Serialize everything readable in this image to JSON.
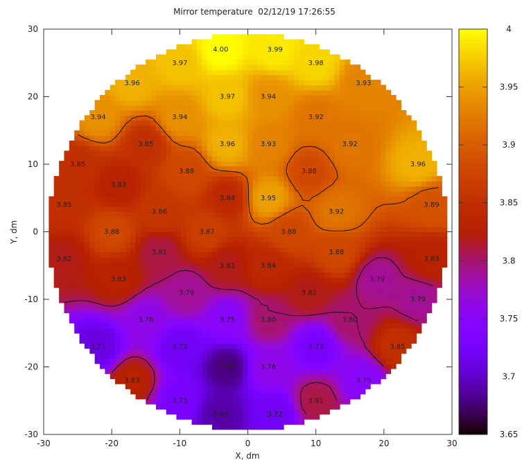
{
  "chart_data": {
    "type": "heatmap",
    "title": "Mirror temperature  02/12/19 17:26:55",
    "xlabel": "X, dm",
    "ylabel": "Y, dm",
    "xlim": [
      -30,
      30
    ],
    "ylim": [
      -30,
      30
    ],
    "xticks": [
      -30,
      -20,
      -10,
      0,
      10,
      20,
      30
    ],
    "yticks": [
      -30,
      -20,
      -10,
      0,
      10,
      20,
      30
    ],
    "colorbar": {
      "range": [
        3.65,
        4.0
      ],
      "ticks": [
        "3.65",
        "3.7",
        "3.75",
        "3.8",
        "3.85",
        "3.9",
        "3.95",
        "4"
      ],
      "colormap": "black-purple-red-orange-yellow"
    },
    "contour_levels": [
      3.8,
      3.9
    ],
    "grid": false,
    "points": [
      {
        "x": -4,
        "y": 27,
        "v": "4.00"
      },
      {
        "x": 4,
        "y": 27,
        "v": "3.99"
      },
      {
        "x": -10,
        "y": 25,
        "v": "3.97"
      },
      {
        "x": 10,
        "y": 25,
        "v": "3.98"
      },
      {
        "x": -17,
        "y": 22,
        "v": "3.96"
      },
      {
        "x": 17,
        "y": 22,
        "v": "3.93"
      },
      {
        "x": -3,
        "y": 20,
        "v": "3.97"
      },
      {
        "x": 3,
        "y": 20,
        "v": "3.94"
      },
      {
        "x": -22,
        "y": 17,
        "v": "3.94"
      },
      {
        "x": -10,
        "y": 17,
        "v": "3.94"
      },
      {
        "x": 10,
        "y": 17,
        "v": "3.92"
      },
      {
        "x": -15,
        "y": 13,
        "v": "3.85"
      },
      {
        "x": -3,
        "y": 13,
        "v": "3.96"
      },
      {
        "x": 3,
        "y": 13,
        "v": "3.93"
      },
      {
        "x": 15,
        "y": 13,
        "v": "3.92"
      },
      {
        "x": -25,
        "y": 10,
        "v": "3.85"
      },
      {
        "x": -9,
        "y": 9,
        "v": "3.88"
      },
      {
        "x": 9,
        "y": 9,
        "v": "3.88"
      },
      {
        "x": 25,
        "y": 10,
        "v": "3.96"
      },
      {
        "x": -19,
        "y": 7,
        "v": "3.83"
      },
      {
        "x": -3,
        "y": 5,
        "v": "3.84"
      },
      {
        "x": 3,
        "y": 5,
        "v": "3.95"
      },
      {
        "x": -27,
        "y": 4,
        "v": "3.85"
      },
      {
        "x": -13,
        "y": 3,
        "v": "3.86"
      },
      {
        "x": 13,
        "y": 3,
        "v": "3.92"
      },
      {
        "x": 27,
        "y": 4,
        "v": "3.89"
      },
      {
        "x": -20,
        "y": 0,
        "v": "3.88"
      },
      {
        "x": -6,
        "y": 0,
        "v": "3.87"
      },
      {
        "x": 6,
        "y": 0,
        "v": "3.88"
      },
      {
        "x": -27,
        "y": -4,
        "v": "3.82"
      },
      {
        "x": -13,
        "y": -3,
        "v": "3.81"
      },
      {
        "x": 13,
        "y": -3,
        "v": "3.88"
      },
      {
        "x": 27,
        "y": -4,
        "v": "3.83"
      },
      {
        "x": -3,
        "y": -5,
        "v": "3.82"
      },
      {
        "x": 3,
        "y": -5,
        "v": "3.84"
      },
      {
        "x": -19,
        "y": -7,
        "v": "3.83"
      },
      {
        "x": 19,
        "y": -7,
        "v": "3.79"
      },
      {
        "x": -9,
        "y": -9,
        "v": "3.79"
      },
      {
        "x": 9,
        "y": -9,
        "v": "3.82"
      },
      {
        "x": 25,
        "y": -10,
        "v": "3.79"
      },
      {
        "x": -15,
        "y": -13,
        "v": "3.76"
      },
      {
        "x": -3,
        "y": -13,
        "v": "3.75"
      },
      {
        "x": 3,
        "y": -13,
        "v": "3.80"
      },
      {
        "x": 15,
        "y": -13,
        "v": "3.80"
      },
      {
        "x": -22,
        "y": -17,
        "v": "3.71"
      },
      {
        "x": -10,
        "y": -17,
        "v": "3.72"
      },
      {
        "x": 10,
        "y": -17,
        "v": "3.73"
      },
      {
        "x": 22,
        "y": -17,
        "v": "3.85"
      },
      {
        "x": -3,
        "y": -20,
        "v": "3.68"
      },
      {
        "x": 3,
        "y": -20,
        "v": "3.76"
      },
      {
        "x": -17,
        "y": -22,
        "v": "3.83"
      },
      {
        "x": 17,
        "y": -22,
        "v": "3.75"
      },
      {
        "x": -10,
        "y": -25,
        "v": "3.73"
      },
      {
        "x": 10,
        "y": -25,
        "v": "3.81"
      },
      {
        "x": -4,
        "y": -27,
        "v": "3.69"
      },
      {
        "x": 4,
        "y": -27,
        "v": "3.72"
      }
    ]
  }
}
